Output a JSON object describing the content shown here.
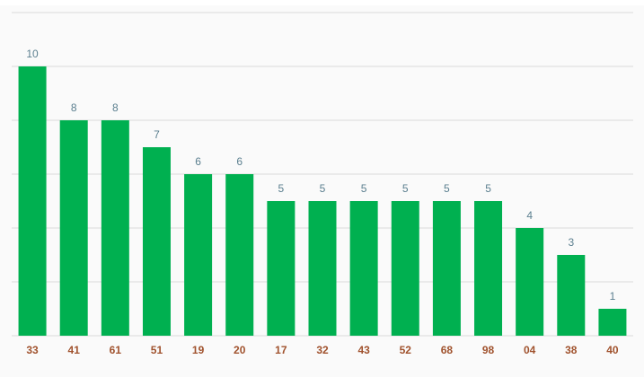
{
  "chart_data": {
    "type": "bar",
    "categories": [
      "33",
      "41",
      "61",
      "51",
      "19",
      "20",
      "17",
      "32",
      "43",
      "52",
      "68",
      "98",
      "04",
      "38",
      "40"
    ],
    "values": [
      10,
      8,
      8,
      7,
      6,
      6,
      5,
      5,
      5,
      5,
      5,
      5,
      4,
      3,
      1
    ],
    "color": "#00b050",
    "ylim": [
      0,
      12
    ],
    "yticks": [
      0,
      2,
      4,
      6,
      8,
      10,
      12
    ],
    "grid": true
  }
}
